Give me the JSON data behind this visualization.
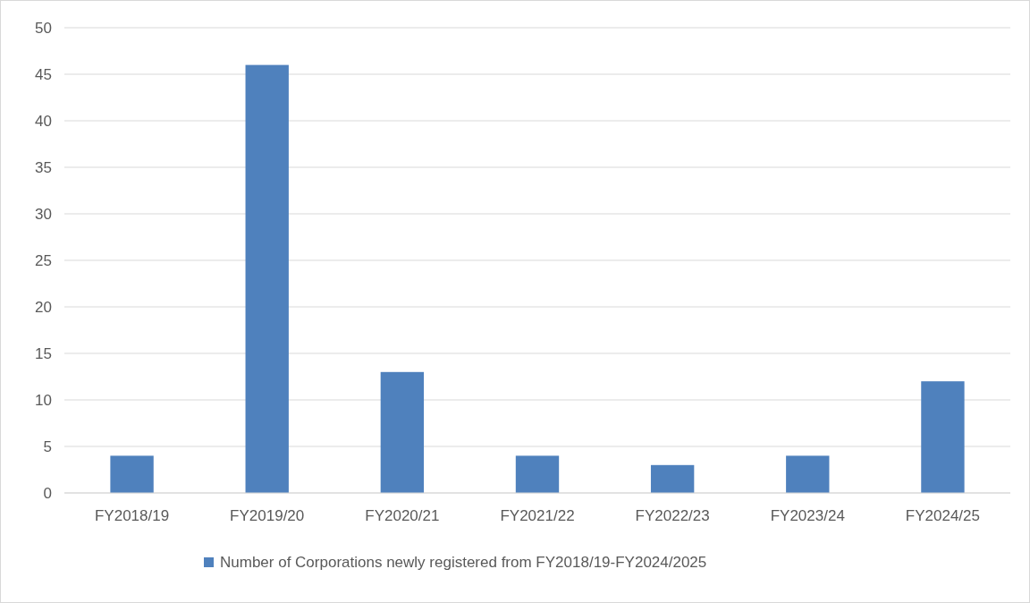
{
  "chart_data": {
    "type": "bar",
    "categories": [
      "FY2018/19",
      "FY2019/20",
      "FY2020/21",
      "FY2021/22",
      "FY2022/23",
      "FY2023/24",
      "FY2024/25"
    ],
    "series": [
      {
        "name": "Number of Corporations newly registered from FY2018/19-FY2024/2025",
        "color": "#4f81bd",
        "values": [
          4,
          46,
          13,
          4,
          3,
          4,
          12
        ]
      }
    ],
    "ylim": [
      0,
      50
    ],
    "yticks": [
      0,
      5,
      10,
      15,
      20,
      25,
      30,
      35,
      40,
      45,
      50
    ],
    "grid": "y",
    "legend": "bottom"
  }
}
